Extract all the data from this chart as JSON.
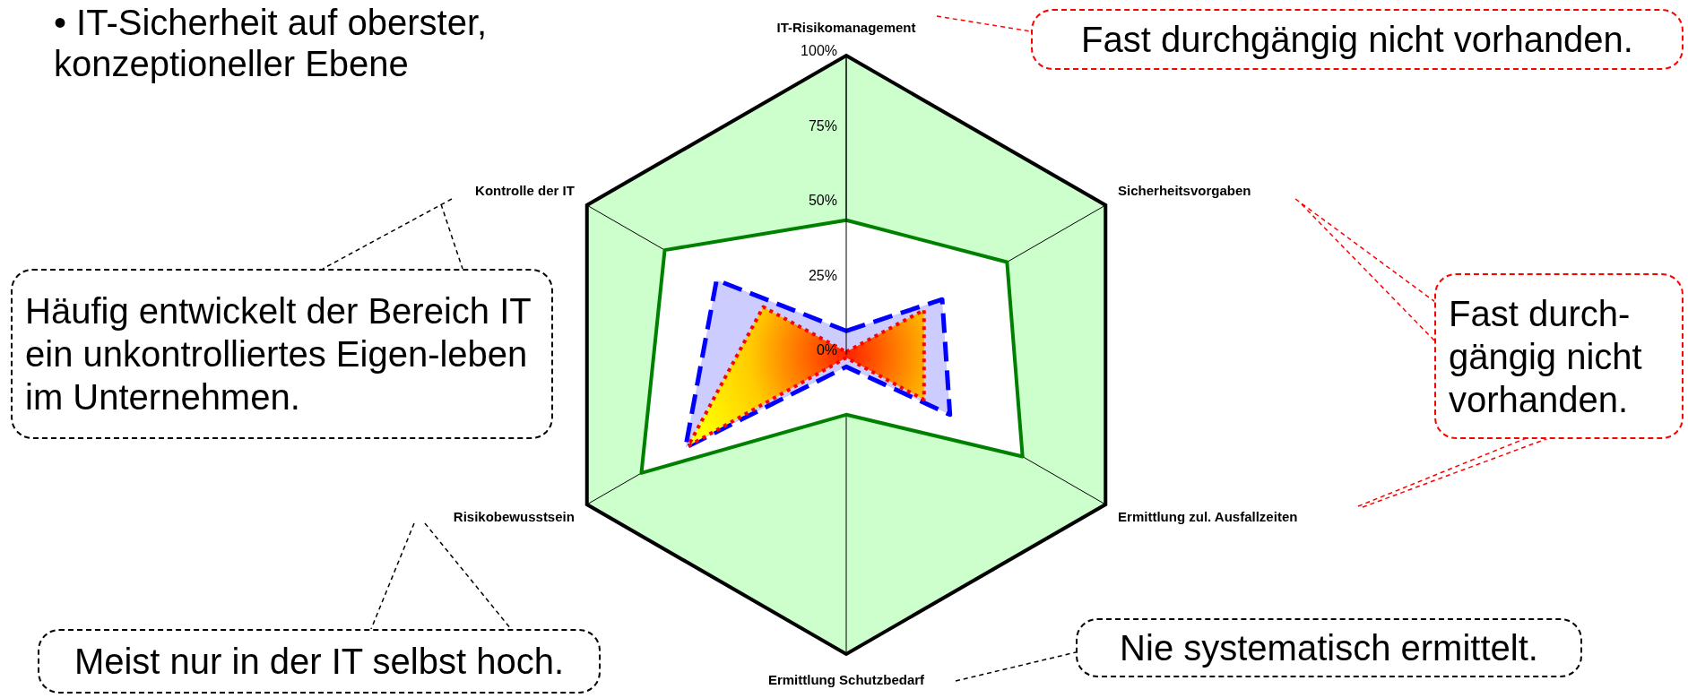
{
  "chart_data": {
    "type": "radar",
    "title": "• IT-Sicherheit auf oberster, konzeptioneller Ebene",
    "categories": [
      "IT-Risikomanagement",
      "Sicherheitsvorgaben",
      "Ermittlung zul. Ausfallzeiten",
      "Ermittlung Schutzbedarf",
      "Risikobewusstsein",
      "Kontrolle der IT"
    ],
    "series": [
      {
        "color": "#008000",
        "line_style": "solid",
        "values": [
          45,
          62,
          68,
          20,
          79,
          70
        ]
      },
      {
        "color": "#0000ff",
        "line_style": "dashed",
        "values": [
          8,
          37,
          40,
          4,
          62,
          50
        ]
      },
      {
        "color": "#ff0000",
        "line_style": "dotted",
        "values": [
          1,
          30,
          30,
          1,
          61,
          32
        ]
      }
    ],
    "ylim": [
      0,
      100
    ],
    "yticks": [
      {
        "value": 0,
        "label": "0%"
      },
      {
        "value": 25,
        "label": "25%"
      },
      {
        "value": 50,
        "label": "50%"
      },
      {
        "value": 75,
        "label": "75%"
      },
      {
        "value": 100,
        "label": "100%"
      }
    ],
    "grid": true,
    "marker": "none",
    "annotations": [
      "Fast durchgängig nicht vorhanden.",
      "Fast durch-gängig nicht vorhanden.",
      "Häufig entwickelt der Bereich IT ein unkontrolliertes Eigen-leben im Unternehmen.",
      "Meist nur in der IT selbst hoch.",
      "Nie systematisch ermittelt."
    ]
  }
}
